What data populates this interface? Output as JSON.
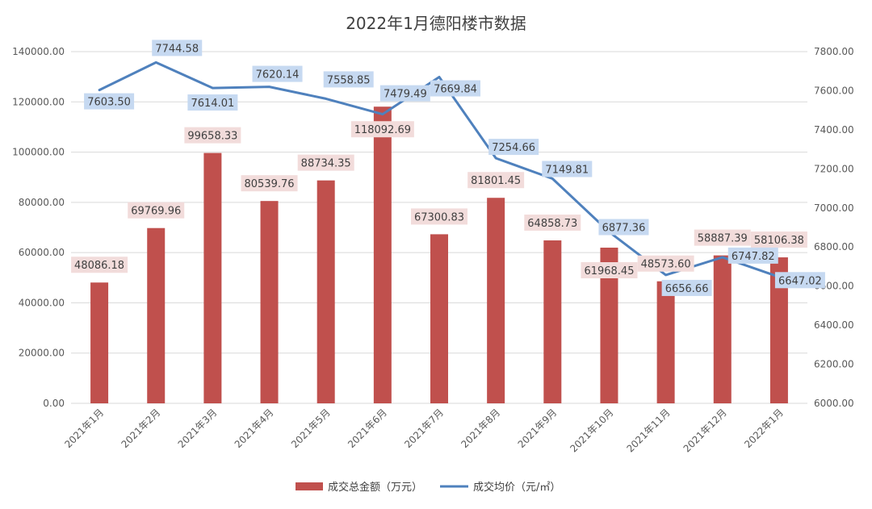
{
  "chart_data": {
    "type": "bar",
    "title": "2022年1月德阳楼市数据",
    "categories": [
      "2021年1月",
      "2021年2月",
      "2021年3月",
      "2021年4月",
      "2021年5月",
      "2021年6月",
      "2021年7月",
      "2021年8月",
      "2021年9月",
      "2021年10月",
      "2021年11月",
      "2021年12月",
      "2022年1月"
    ],
    "left_axis": {
      "min": 0,
      "max": 140000,
      "step": 20000,
      "ticks": [
        "0.00",
        "20000.00",
        "40000.00",
        "60000.00",
        "80000.00",
        "100000.00",
        "120000.00",
        "140000.00"
      ]
    },
    "right_axis": {
      "min": 6000,
      "max": 7800,
      "step": 200,
      "ticks": [
        "6000.00",
        "6200.00",
        "6400.00",
        "6600.00",
        "6800.00",
        "7000.00",
        "7200.00",
        "7400.00",
        "7600.00",
        "7800.00"
      ]
    },
    "series": [
      {
        "name": "成交总金额（万元）",
        "type": "bar",
        "axis": "left",
        "color": "#C0504D",
        "label_bg": "#F2DCDB",
        "values": [
          48086.18,
          69769.96,
          99658.33,
          80539.76,
          88734.35,
          118092.69,
          67300.83,
          81801.45,
          64858.73,
          61968.45,
          48573.6,
          58887.39,
          58106.38
        ],
        "labels": [
          "48086.18",
          "69769.96",
          "99658.33",
          "80539.76",
          "88734.35",
          "118092.69",
          "67300.83",
          "81801.45",
          "64858.73",
          "61968.45",
          "48573.60",
          "58887.39",
          "58106.38"
        ]
      },
      {
        "name": "成交均价（元/㎡）",
        "type": "line",
        "axis": "right",
        "color": "#4F81BD",
        "label_bg": "#C6D9F1",
        "values": [
          7603.5,
          7744.58,
          7614.01,
          7620.14,
          7558.85,
          7479.49,
          7669.84,
          7254.66,
          7149.81,
          6877.36,
          6656.66,
          6747.82,
          6647.02
        ],
        "labels": [
          "7603.50",
          "7744.58",
          "7614.01",
          "7620.14",
          "7558.85",
          "7479.49",
          "7669.84",
          "7254.66",
          "7149.81",
          "6877.36",
          "6656.66",
          "6747.82",
          "6647.02"
        ]
      }
    ],
    "grid": true,
    "legend_position": "bottom"
  }
}
